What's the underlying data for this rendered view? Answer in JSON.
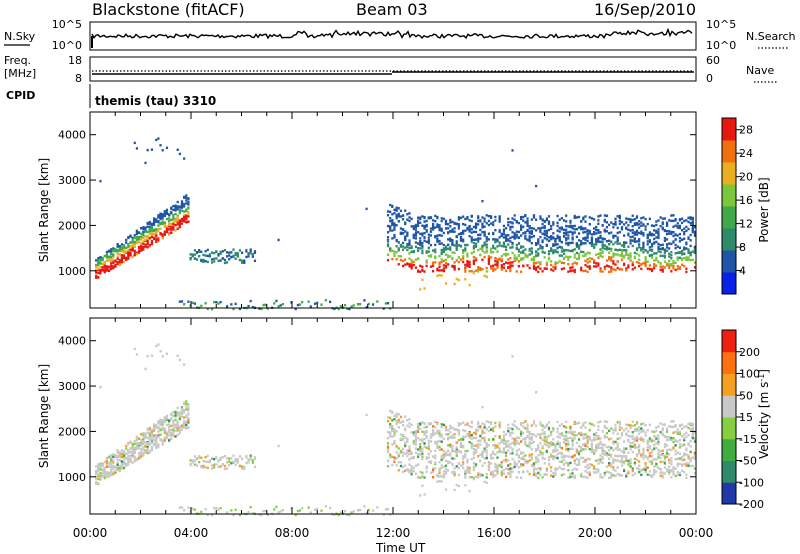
{
  "header": {
    "station": "Blackstone (fitACF)",
    "beam": "Beam 03",
    "date": "16/Sep/2010"
  },
  "strip_sky": {
    "left_label": "N.Sky",
    "right_label": "N.Search",
    "left_ticks": [
      "10^5",
      "10^0"
    ],
    "right_ticks": [
      "10^5",
      "10^0"
    ]
  },
  "strip_freq": {
    "left_label_1": "Freq.",
    "left_label_2": "[MHz]",
    "right_label": "Nave",
    "left_ticks": [
      "18",
      "8"
    ],
    "right_ticks": [
      "60",
      "0"
    ]
  },
  "strip_cpid": {
    "label": "CPID",
    "value": "themis (tau) 3310"
  },
  "chart_data": [
    {
      "type": "heatmap",
      "title": "",
      "xlabel": "Time UT",
      "ylabel": "Slant Range [km]",
      "x_range_hours": [
        0,
        24
      ],
      "ylim": [
        180,
        4500
      ],
      "y_ticks": [
        "1000",
        "2000",
        "3000",
        "4000"
      ],
      "colorbar": {
        "label": "Power [dB]",
        "tick_labels": [
          "4",
          "8",
          "12",
          "16",
          "20",
          "24",
          "28"
        ],
        "range": [
          0,
          30
        ],
        "colors": [
          "#0a20e6",
          "#1e55a5",
          "#2e8a6a",
          "#3fa84a",
          "#7ac83a",
          "#e8b020",
          "#f07010",
          "#e81810"
        ]
      },
      "features": [
        {
          "name": "morning-scatter-band",
          "t_start": 0.2,
          "t_end": 3.9,
          "range_start_km": 1000,
          "range_end_km": 2550
        },
        {
          "name": "high-range-patch",
          "t_start": 1.7,
          "t_end": 3.6,
          "range_start_km": 3500,
          "range_end_km": 4000
        },
        {
          "name": "mid-range-band",
          "t_start": 3.9,
          "t_end": 6.5,
          "range_start_km": 1200,
          "range_end_km": 1500
        },
        {
          "name": "near-range-scatter",
          "t_start": 3.5,
          "t_end": 12.0,
          "range_start_km": 180,
          "range_end_km": 400
        },
        {
          "name": "afternoon-main-band",
          "t_start": 11.7,
          "t_end": 24.0,
          "range_start_km": 1000,
          "range_end_km": 2300
        }
      ]
    },
    {
      "type": "heatmap",
      "title": "",
      "xlabel": "Time UT",
      "ylabel": "Slant Range [km]",
      "x_range_hours": [
        0,
        24
      ],
      "ylim": [
        180,
        4500
      ],
      "y_ticks": [
        "1000",
        "2000",
        "3000",
        "4000"
      ],
      "x_tick_labels": [
        "00:00",
        "04:00",
        "08:00",
        "12:00",
        "16:00",
        "20:00",
        "00:00"
      ],
      "colorbar": {
        "label": "Velocity [m s",
        "label_superscript": "-1",
        "label_end": "]",
        "tick_labels": [
          "200",
          "100",
          "50",
          "15",
          "-15",
          "-50",
          "-100",
          "-200"
        ],
        "colors": [
          "#1f3aa8",
          "#2e8a6a",
          "#3fae3f",
          "#86d040",
          "#c8c8c8",
          "#f5a020",
          "#ff7010",
          "#ee2010"
        ]
      }
    }
  ]
}
